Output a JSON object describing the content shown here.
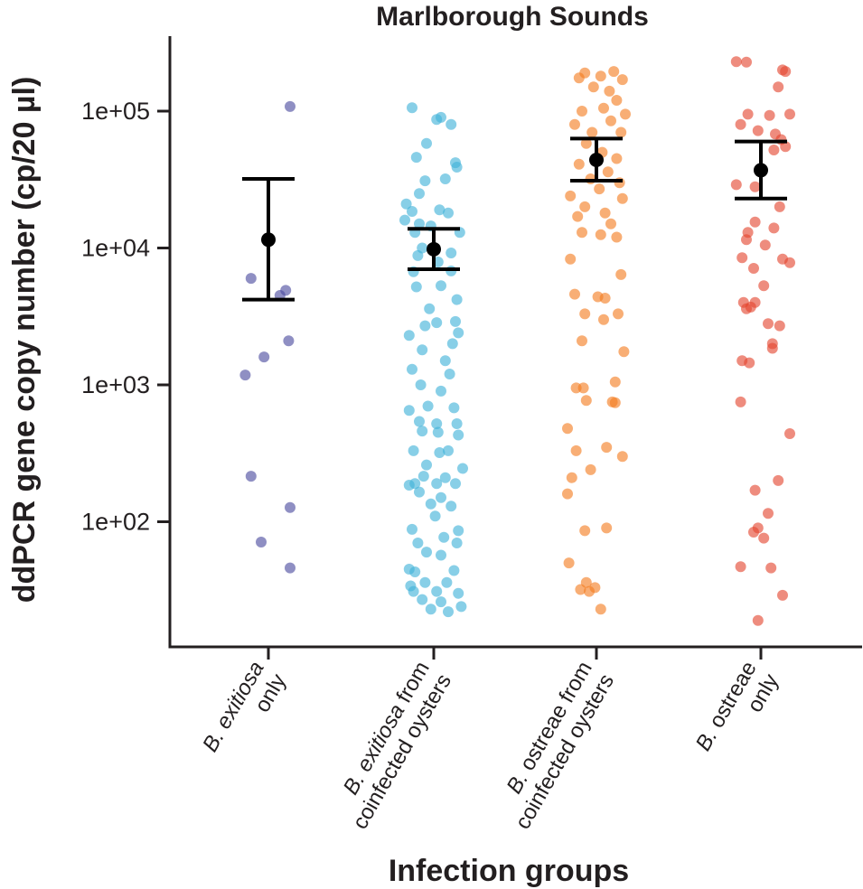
{
  "colors": {
    "axis": "#231f20",
    "mean": "#000000",
    "groups": [
      "#4b4a9e",
      "#3fb1d9",
      "#f47c20",
      "#e4462e"
    ]
  },
  "chart_data": {
    "type": "scatter",
    "title": "Marlborough Sounds",
    "xlabel": "Infection groups",
    "ylabel": "ddPCR gene copy number (cp/20 µl)",
    "yscale": "log10",
    "ylim": [
      13,
      400000
    ],
    "yticks": [
      {
        "value": 100,
        "label": "1e+02"
      },
      {
        "value": 1000,
        "label": "1e+03"
      },
      {
        "value": 10000,
        "label": "1e+04"
      },
      {
        "value": 100000,
        "label": "1e+05"
      }
    ],
    "grid": false,
    "legend": "none",
    "categories": [
      {
        "line1_it": "B. exitiosa",
        "line1_rest": "",
        "line2": "only"
      },
      {
        "line1_it": "B. exitiosa",
        "line1_rest": " from",
        "line2": "coinfected oysters"
      },
      {
        "line1_it": "B.",
        "line1_rest": " ostreae from",
        "line2": "coinfected oysters"
      },
      {
        "line1_it": "B.",
        "line1_rest": " ostreae",
        "line2": "only"
      }
    ],
    "series": [
      {
        "name": "B. exitiosa only",
        "mean": 11500,
        "ci_low": 4200,
        "ci_high": 32000,
        "points": [
          [
            0.15,
            108000
          ],
          [
            -0.12,
            6000
          ],
          [
            0.12,
            4900
          ],
          [
            0.08,
            4500
          ],
          [
            -0.03,
            1600
          ],
          [
            0.14,
            2100
          ],
          [
            -0.16,
            1180
          ],
          [
            -0.12,
            215
          ],
          [
            0.15,
            127
          ],
          [
            -0.05,
            71
          ],
          [
            0.15,
            46
          ]
        ]
      },
      {
        "name": "B. exitiosa from coinfected oysters",
        "mean": 9800,
        "ci_low": 7000,
        "ci_high": 13800,
        "points": [
          [
            -0.15,
            106000
          ],
          [
            0.05,
            90000
          ],
          [
            0.12,
            80000
          ],
          [
            0.02,
            87000
          ],
          [
            -0.05,
            58000
          ],
          [
            -0.12,
            46000
          ],
          [
            0.15,
            42000
          ],
          [
            0.16,
            39000
          ],
          [
            -0.06,
            31000
          ],
          [
            0.08,
            32000
          ],
          [
            -0.1,
            25000
          ],
          [
            -0.19,
            21000
          ],
          [
            -0.15,
            18500
          ],
          [
            0.04,
            19000
          ],
          [
            0.1,
            18000
          ],
          [
            -0.2,
            16000
          ],
          [
            -0.1,
            15000
          ],
          [
            -0.02,
            14500
          ],
          [
            -0.13,
            13000
          ],
          [
            0.18,
            13000
          ],
          [
            -0.08,
            10000
          ],
          [
            0.12,
            9200
          ],
          [
            -0.11,
            8800
          ],
          [
            0.03,
            7900
          ],
          [
            -0.14,
            6700
          ],
          [
            0.12,
            6800
          ],
          [
            -0.12,
            5200
          ],
          [
            0.05,
            5300
          ],
          [
            0.16,
            4200
          ],
          [
            -0.03,
            3600
          ],
          [
            0.15,
            2900
          ],
          [
            0.02,
            2850
          ],
          [
            -0.06,
            2700
          ],
          [
            0.17,
            2400
          ],
          [
            -0.17,
            2300
          ],
          [
            0.13,
            2000
          ],
          [
            -0.08,
            1800
          ],
          [
            0.08,
            1500
          ],
          [
            -0.15,
            1300
          ],
          [
            0.11,
            1200
          ],
          [
            -0.09,
            1000
          ],
          [
            0.05,
            900
          ],
          [
            -0.04,
            700
          ],
          [
            0.14,
            680
          ],
          [
            -0.17,
            650
          ],
          [
            0.02,
            520
          ],
          [
            -0.1,
            540
          ],
          [
            0.16,
            520
          ],
          [
            0.03,
            450
          ],
          [
            -0.08,
            460
          ],
          [
            0.17,
            430
          ],
          [
            -0.14,
            330
          ],
          [
            0.04,
            320
          ],
          [
            0.1,
            330
          ],
          [
            -0.05,
            260
          ],
          [
            0.2,
            245
          ],
          [
            -0.07,
            215
          ],
          [
            0.08,
            210
          ],
          [
            -0.13,
            190
          ],
          [
            0.02,
            190
          ],
          [
            -0.17,
            185
          ],
          [
            0.15,
            190
          ],
          [
            -0.1,
            165
          ],
          [
            0.05,
            150
          ],
          [
            -0.02,
            135
          ],
          [
            0.12,
            130
          ],
          [
            -0.15,
            88
          ],
          [
            0.01,
            110
          ],
          [
            0.17,
            86
          ],
          [
            0.07,
            77
          ],
          [
            -0.11,
            70
          ],
          [
            0.16,
            70
          ],
          [
            -0.05,
            60
          ],
          [
            0.05,
            57
          ],
          [
            -0.17,
            45
          ],
          [
            -0.13,
            43
          ],
          [
            0.14,
            44
          ],
          [
            0.09,
            36
          ],
          [
            -0.06,
            36
          ],
          [
            0.02,
            31
          ],
          [
            -0.14,
            31
          ],
          [
            0.17,
            30
          ],
          [
            -0.08,
            27
          ],
          [
            0.05,
            26
          ],
          [
            -0.02,
            23
          ],
          [
            0.19,
            24
          ],
          [
            0.1,
            22
          ],
          [
            -0.16,
            34
          ]
        ]
      },
      {
        "name": "B. ostreae from coinfected oysters",
        "mean": 44000,
        "ci_low": 31000,
        "ci_high": 63000,
        "points": [
          [
            -0.08,
            190000
          ],
          [
            0.12,
            195000
          ],
          [
            0.03,
            180000
          ],
          [
            -0.12,
            175000
          ],
          [
            0.18,
            170000
          ],
          [
            -0.02,
            150000
          ],
          [
            0.09,
            140000
          ],
          [
            0.14,
            120000
          ],
          [
            -0.1,
            100000
          ],
          [
            0.05,
            105000
          ],
          [
            0.2,
            95000
          ],
          [
            -0.15,
            80000
          ],
          [
            0.1,
            85000
          ],
          [
            -0.03,
            70000
          ],
          [
            0.17,
            70000
          ],
          [
            -0.07,
            58000
          ],
          [
            0.04,
            50000
          ],
          [
            0.14,
            45000
          ],
          [
            -0.12,
            41000
          ],
          [
            0.08,
            36000
          ],
          [
            -0.04,
            32000
          ],
          [
            0.16,
            30000
          ],
          [
            0.02,
            27000
          ],
          [
            0.18,
            23000
          ],
          [
            -0.18,
            24000
          ],
          [
            -0.08,
            20000
          ],
          [
            0.06,
            18000
          ],
          [
            -0.13,
            17000
          ],
          [
            0.1,
            15000
          ],
          [
            -0.1,
            13000
          ],
          [
            0.03,
            12500
          ],
          [
            0.14,
            12000
          ],
          [
            -0.18,
            8300
          ],
          [
            0.17,
            6400
          ],
          [
            -0.15,
            4600
          ],
          [
            0.01,
            4400
          ],
          [
            0.06,
            4300
          ],
          [
            -0.08,
            3300
          ],
          [
            0.15,
            3300
          ],
          [
            0.05,
            3000
          ],
          [
            -0.1,
            2100
          ],
          [
            0.19,
            1750
          ],
          [
            0.13,
            1050
          ],
          [
            -0.14,
            950
          ],
          [
            -0.09,
            950
          ],
          [
            -0.07,
            770
          ],
          [
            0.11,
            750
          ],
          [
            0.13,
            740
          ],
          [
            -0.2,
            480
          ],
          [
            0.07,
            350
          ],
          [
            -0.14,
            330
          ],
          [
            0.18,
            300
          ],
          [
            -0.04,
            240
          ],
          [
            -0.17,
            210
          ],
          [
            -0.2,
            160
          ],
          [
            0.07,
            90
          ],
          [
            -0.08,
            86
          ],
          [
            -0.19,
            50
          ],
          [
            -0.07,
            36
          ],
          [
            -0.01,
            33
          ],
          [
            -0.11,
            32
          ],
          [
            -0.05,
            31
          ],
          [
            0.03,
            23
          ]
        ]
      },
      {
        "name": "B. ostreae only",
        "mean": 37000,
        "ci_low": 23000,
        "ci_high": 60000,
        "points": [
          [
            -0.17,
            230000
          ],
          [
            -0.1,
            228000
          ],
          [
            0.15,
            200000
          ],
          [
            0.17,
            195000
          ],
          [
            0.12,
            150000
          ],
          [
            -0.09,
            95000
          ],
          [
            0.06,
            93000
          ],
          [
            0.2,
            95000
          ],
          [
            -0.14,
            80000
          ],
          [
            -0.02,
            72000
          ],
          [
            0.1,
            68000
          ],
          [
            0.14,
            62000
          ],
          [
            0.17,
            55000
          ],
          [
            0.09,
            52000
          ],
          [
            -0.17,
            29000
          ],
          [
            -0.04,
            28000
          ],
          [
            0.13,
            20000
          ],
          [
            -0.04,
            15500
          ],
          [
            0.09,
            14000
          ],
          [
            -0.09,
            13000
          ],
          [
            -0.1,
            11500
          ],
          [
            0.03,
            10500
          ],
          [
            -0.13,
            8500
          ],
          [
            0.15,
            8300
          ],
          [
            0.2,
            7800
          ],
          [
            -0.05,
            7100
          ],
          [
            0.02,
            5300
          ],
          [
            -0.12,
            4000
          ],
          [
            -0.07,
            3700
          ],
          [
            -0.1,
            3600
          ],
          [
            0.05,
            2800
          ],
          [
            0.13,
            2700
          ],
          [
            -0.04,
            4000
          ],
          [
            0.08,
            2000
          ],
          [
            0.08,
            1850
          ],
          [
            -0.13,
            1500
          ],
          [
            -0.08,
            1450
          ],
          [
            -0.14,
            750
          ],
          [
            0.2,
            440
          ],
          [
            0.12,
            200
          ],
          [
            -0.04,
            170
          ],
          [
            0.05,
            115
          ],
          [
            -0.02,
            90
          ],
          [
            -0.05,
            84
          ],
          [
            0.02,
            76
          ],
          [
            -0.14,
            47
          ],
          [
            0.07,
            46
          ],
          [
            0.15,
            29
          ],
          [
            -0.02,
            19
          ]
        ]
      }
    ]
  }
}
